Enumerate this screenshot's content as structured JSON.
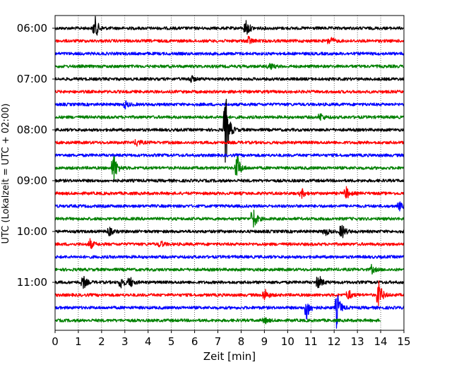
{
  "chart_data": {
    "type": "line",
    "subtype": "seismogram-helicorder",
    "xlabel": "Zeit  [min]",
    "ylabel": "UTC (Lokalzeit = UTC + 02:00)",
    "xlim": [
      0,
      15
    ],
    "x_ticks": [
      0,
      1,
      2,
      3,
      4,
      5,
      6,
      7,
      8,
      9,
      10,
      11,
      12,
      13,
      14,
      15
    ],
    "vertical_grid": "dotted",
    "y_ticks": [
      "06:00",
      "07:00",
      "08:00",
      "09:00",
      "10:00",
      "11:00"
    ],
    "trace_interval_min": 15,
    "trace_colors": [
      "#000000",
      "#ff0000",
      "#0000ff",
      "#008000"
    ],
    "traces": [
      {
        "start": "06:00",
        "color": "#000000",
        "end_min": 15,
        "events": [
          [
            1.7,
            3.2
          ],
          [
            8.2,
            2.4
          ]
        ]
      },
      {
        "start": "06:15",
        "color": "#ff0000",
        "end_min": 15,
        "events": [
          [
            8.3,
            1.2
          ],
          [
            11.8,
            1.3
          ]
        ]
      },
      {
        "start": "06:30",
        "color": "#0000ff",
        "end_min": 15,
        "events": []
      },
      {
        "start": "06:45",
        "color": "#008000",
        "end_min": 15,
        "events": [
          [
            9.2,
            1.1
          ]
        ]
      },
      {
        "start": "07:00",
        "color": "#000000",
        "end_min": 15,
        "events": [
          [
            5.8,
            1.1
          ]
        ]
      },
      {
        "start": "07:15",
        "color": "#ff0000",
        "end_min": 15,
        "events": []
      },
      {
        "start": "07:30",
        "color": "#0000ff",
        "end_min": 15,
        "events": [
          [
            3.0,
            1.0
          ]
        ]
      },
      {
        "start": "07:45",
        "color": "#008000",
        "end_min": 15,
        "events": [
          [
            11.4,
            1.0
          ]
        ]
      },
      {
        "start": "08:00",
        "color": "#000000",
        "end_min": 15,
        "events": [
          [
            7.3,
            12.0
          ]
        ]
      },
      {
        "start": "08:15",
        "color": "#ff0000",
        "end_min": 15,
        "events": [
          [
            3.5,
            1.0
          ]
        ]
      },
      {
        "start": "08:30",
        "color": "#0000ff",
        "end_min": 15,
        "events": []
      },
      {
        "start": "08:45",
        "color": "#008000",
        "end_min": 15,
        "events": [
          [
            2.5,
            4.5
          ],
          [
            7.8,
            4.2
          ]
        ]
      },
      {
        "start": "09:00",
        "color": "#000000",
        "end_min": 15,
        "events": []
      },
      {
        "start": "09:15",
        "color": "#ff0000",
        "end_min": 15,
        "events": [
          [
            10.6,
            1.1
          ],
          [
            12.5,
            1.7
          ]
        ]
      },
      {
        "start": "09:30",
        "color": "#0000ff",
        "end_min": 15,
        "events": [
          [
            14.8,
            1.1
          ]
        ]
      },
      {
        "start": "09:45",
        "color": "#008000",
        "end_min": 15,
        "events": [
          [
            8.5,
            3.2
          ]
        ]
      },
      {
        "start": "10:00",
        "color": "#000000",
        "end_min": 15,
        "events": [
          [
            2.3,
            1.2
          ],
          [
            11.6,
            1.1
          ],
          [
            12.3,
            2.4
          ]
        ]
      },
      {
        "start": "10:15",
        "color": "#ff0000",
        "end_min": 15,
        "events": [
          [
            1.5,
            1.2
          ],
          [
            4.5,
            1.0
          ]
        ]
      },
      {
        "start": "10:30",
        "color": "#0000ff",
        "end_min": 15,
        "events": []
      },
      {
        "start": "10:45",
        "color": "#008000",
        "end_min": 15,
        "events": [
          [
            13.6,
            1.0
          ]
        ]
      },
      {
        "start": "11:00",
        "color": "#000000",
        "end_min": 15,
        "events": [
          [
            1.2,
            1.8
          ],
          [
            2.8,
            1.8
          ],
          [
            3.2,
            1.5
          ],
          [
            11.3,
            2.4
          ]
        ]
      },
      {
        "start": "11:15",
        "color": "#ff0000",
        "end_min": 15,
        "events": [
          [
            9.0,
            1.7
          ],
          [
            12.6,
            1.4
          ],
          [
            13.9,
            4.0
          ]
        ]
      },
      {
        "start": "11:30",
        "color": "#0000ff",
        "end_min": 15,
        "events": [
          [
            10.8,
            3.5
          ],
          [
            12.1,
            4.6
          ]
        ]
      },
      {
        "start": "11:45",
        "color": "#008000",
        "end_min": 14.0,
        "events": [
          [
            9.0,
            0.8
          ]
        ]
      }
    ]
  }
}
